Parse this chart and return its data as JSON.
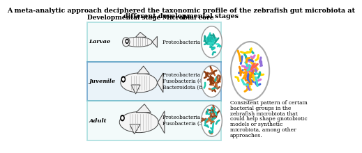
{
  "title_line1": "A meta-analytic approach deciphered the taxonomic profile of the zebrafish gut microbiota at",
  "title_line2": "different developmental stages",
  "col1_header": "Developmental stage",
  "col2_header": "Microbial core",
  "rows": [
    {
      "stage": "Larvae",
      "bacteria": "Proteobacteria (90%)",
      "bacteria_lines": [
        "Proteobacteria (90%)"
      ]
    },
    {
      "stage": "Juvenile",
      "bacteria": "Proteobacteria (48%)\nFusobacteria (40%)\nBacteroidota (8.9%)",
      "bacteria_lines": [
        "Proteobacteria (48%)",
        "Fusobacteria (40%)",
        "Bacteroidota (8.9%)"
      ]
    },
    {
      "stage": "Adult",
      "bacteria": "Proteobacteria (48%)\nFusobacteria (35%)",
      "bacteria_lines": [
        "Proteobacteria (48%)",
        "Fusobacteria (35%)"
      ]
    }
  ],
  "side_text_lines": [
    "Consistent pattern of certain",
    "bacterial groups in the",
    "zebrafish microbiota that",
    "could help shape gnotobiotic",
    "models or synthetic",
    "microbiota, among other",
    "approaches."
  ],
  "table_border_color_light": "#7ecece",
  "table_border_color_dark": "#2a7ab5",
  "row_bg_light": "#eaf6f6",
  "row_bg_dark": "#daeaf5",
  "background_color": "#ffffff",
  "title_fontsize": 6.8,
  "header_fontsize": 6.5,
  "stage_fontsize": 6.0,
  "cell_fontsize": 5.2,
  "side_fontsize": 5.5
}
